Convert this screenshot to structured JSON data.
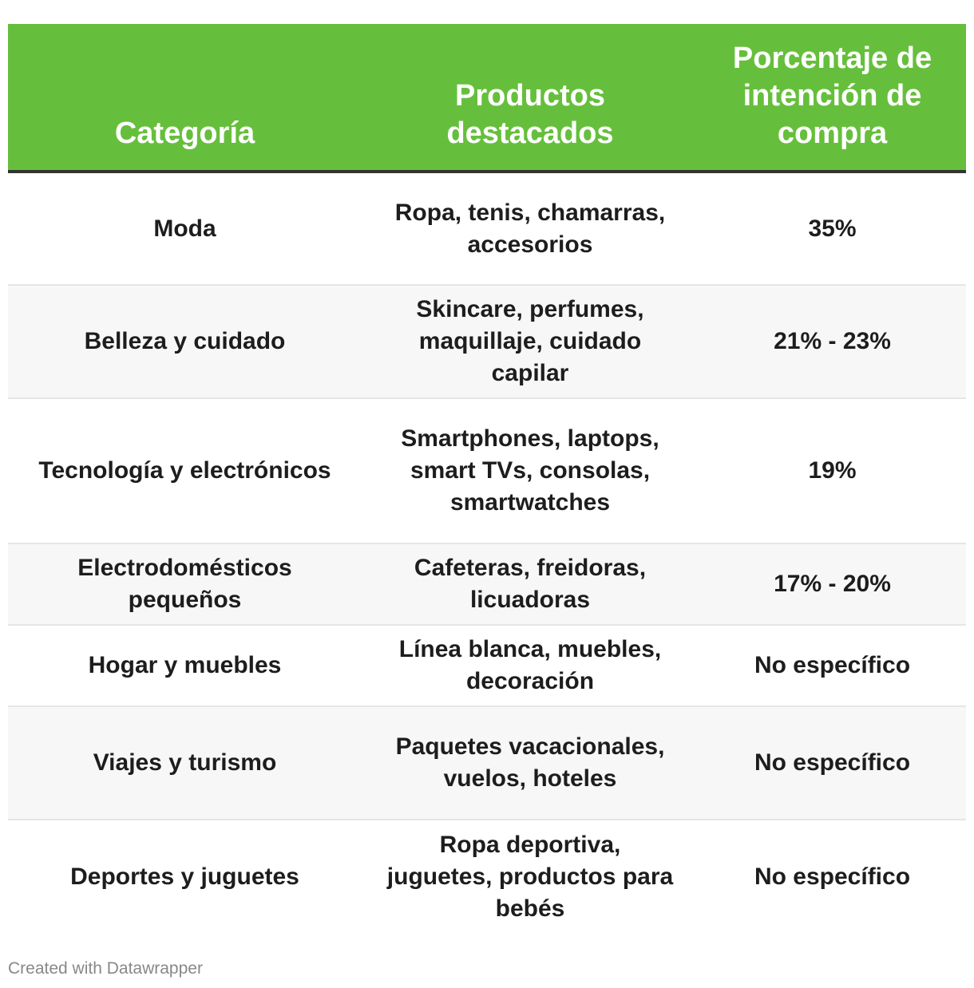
{
  "table": {
    "headers": [
      "Categoría",
      "Productos destacados",
      "Porcentaje de intención de compra"
    ],
    "rows": [
      {
        "categoria": "Moda",
        "productos": "Ropa, tenis, chamarras, accesorios",
        "porcentaje": "35%"
      },
      {
        "categoria": "Belleza y cuidado",
        "productos": "Skincare, perfumes, maquillaje, cuidado capilar",
        "porcentaje": "21% - 23%"
      },
      {
        "categoria": "Tecnología y electrónicos",
        "productos": "Smartphones, laptops, smart TVs, consolas, smartwatches",
        "porcentaje": "19%"
      },
      {
        "categoria": "Electrodomésticos pequeños",
        "productos": "Cafeteras, freidoras, licuadoras",
        "porcentaje": "17% - 20%"
      },
      {
        "categoria": "Hogar y muebles",
        "productos": "Línea blanca, muebles, decoración",
        "porcentaje": "No específico"
      },
      {
        "categoria": "Viajes y turismo",
        "productos": "Paquetes vacacionales, vuelos, hoteles",
        "porcentaje": "No específico"
      },
      {
        "categoria": "Deportes y juguetes",
        "productos": "Ropa deportiva, juguetes, productos para bebés",
        "porcentaje": "No específico"
      }
    ]
  },
  "footer": {
    "credit": "Created with Datawrapper"
  },
  "colors": {
    "header_bg": "#66bf3c",
    "header_text": "#ffffff",
    "alt_row_bg": "#f7f7f7",
    "header_rule": "#333333"
  }
}
